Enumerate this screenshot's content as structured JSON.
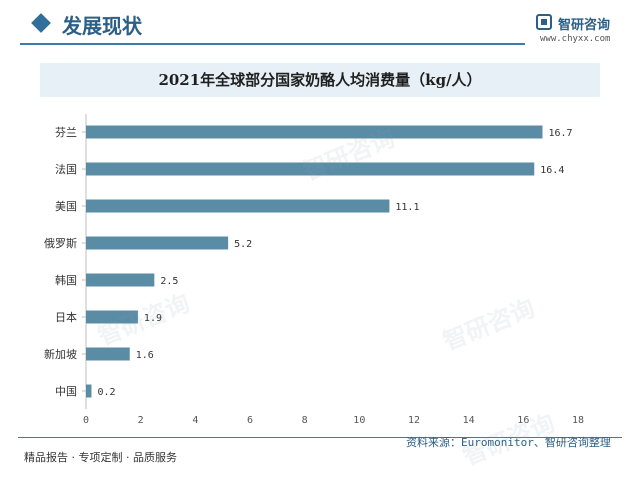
{
  "header": {
    "section_title": "发展现状",
    "brand_name": "智研咨询",
    "brand_url": "www.chyxx.com"
  },
  "footer": {
    "left_text": "精品报告 · 专项定制 · 品质服务",
    "source_text": "资料来源：Euromonitor、智研咨询整理"
  },
  "watermark_text": "智研咨询",
  "colors": {
    "bar": "#5a8ca6",
    "accent": "#2b5f86",
    "title_band": "#e8f0f7"
  },
  "chart_data": {
    "type": "bar",
    "orientation": "horizontal",
    "title": "2021年全球部分国家奶酪人均消费量（kg/人）",
    "categories": [
      "芬兰",
      "法国",
      "美国",
      "俄罗斯",
      "韩国",
      "日本",
      "新加坡",
      "中国"
    ],
    "values": [
      16.7,
      16.4,
      11.1,
      5.2,
      2.5,
      1.9,
      1.6,
      0.2
    ],
    "value_labels": [
      "16.7",
      "16.4",
      "11.1",
      "5.2",
      "2.5",
      "1.9",
      "1.6",
      "0.2"
    ],
    "x_ticks": [
      "0",
      "2",
      "4",
      "6",
      "8",
      "10",
      "12",
      "14",
      "16",
      "18"
    ],
    "xlim": [
      0,
      18
    ],
    "xlabel": "",
    "ylabel": "",
    "grid": false,
    "legend": "none"
  }
}
